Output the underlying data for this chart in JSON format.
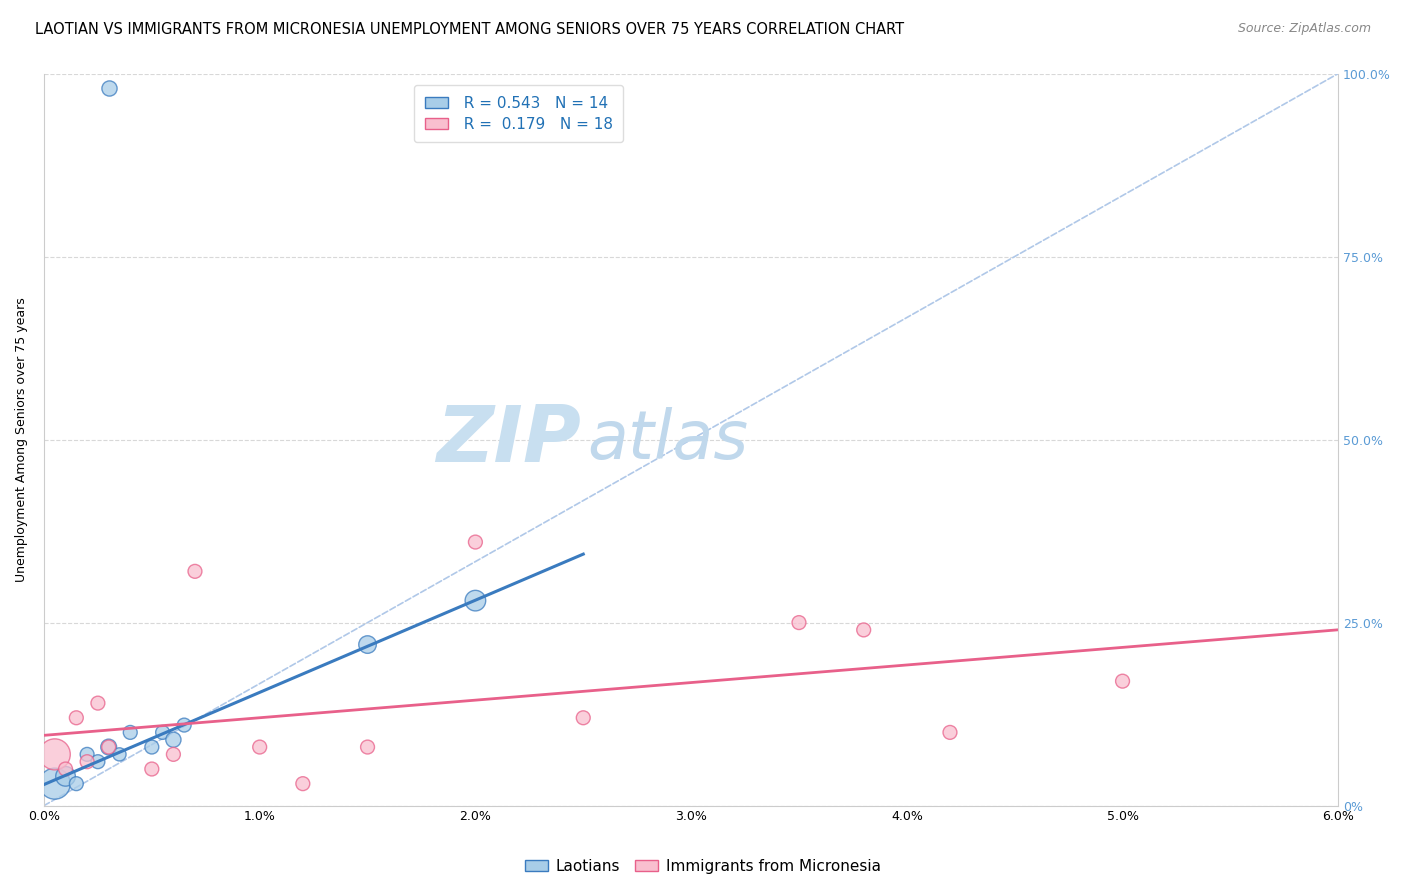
{
  "title": "LAOTIAN VS IMMIGRANTS FROM MICRONESIA UNEMPLOYMENT AMONG SENIORS OVER 75 YEARS CORRELATION CHART",
  "source": "Source: ZipAtlas.com",
  "ylabel": "Unemployment Among Seniors over 75 years",
  "xlabel_ticks": [
    "0.0%",
    "1.0%",
    "2.0%",
    "3.0%",
    "4.0%",
    "5.0%",
    "6.0%"
  ],
  "xlabel_vals": [
    0.0,
    1.0,
    2.0,
    3.0,
    4.0,
    5.0,
    6.0
  ],
  "ylabel_ticks_right": [
    "0%",
    "25.0%",
    "50.0%",
    "75.0%",
    "100.0%"
  ],
  "ylabel_vals_right": [
    0,
    25,
    50,
    75,
    100
  ],
  "xmin": 0.0,
  "xmax": 6.0,
  "ymin": 0,
  "ymax": 100,
  "blue_color": "#a8cde8",
  "pink_color": "#f9bfcf",
  "blue_line_color": "#3a7bbf",
  "pink_line_color": "#e8608a",
  "diagonal_color": "#b0c8e8",
  "watermark_zip_color": "#c8dff0",
  "watermark_atlas_color": "#c0d8ec",
  "legend_blue_r": "R = 0.543",
  "legend_blue_n": "N = 14",
  "legend_pink_r": "R =  0.179",
  "legend_pink_n": "N = 18",
  "label_blue": "Laotians",
  "label_pink": "Immigrants from Micronesia",
  "laotian_x": [
    0.05,
    0.1,
    0.15,
    0.2,
    0.25,
    0.3,
    0.35,
    0.4,
    0.5,
    0.55,
    0.6,
    0.65,
    1.5,
    2.0
  ],
  "laotian_y": [
    3,
    4,
    3,
    7,
    6,
    8,
    7,
    10,
    8,
    10,
    9,
    11,
    22,
    28
  ],
  "laotian_size": [
    500,
    200,
    100,
    100,
    100,
    130,
    90,
    100,
    100,
    100,
    120,
    100,
    160,
    220
  ],
  "micronesia_x": [
    0.05,
    0.1,
    0.15,
    0.2,
    0.25,
    0.3,
    0.5,
    0.6,
    0.7,
    1.5,
    2.0,
    2.5,
    3.5,
    3.8,
    4.2,
    5.0,
    1.0,
    1.2
  ],
  "micronesia_y": [
    7,
    5,
    12,
    6,
    14,
    8,
    5,
    7,
    32,
    8,
    36,
    12,
    25,
    24,
    10,
    17,
    8,
    3
  ],
  "micronesia_size": [
    500,
    100,
    100,
    100,
    100,
    100,
    100,
    100,
    100,
    100,
    100,
    100,
    100,
    100,
    100,
    100,
    100,
    100
  ],
  "blue_regr_x0": -0.05,
  "blue_regr_x1": 2.5,
  "pink_regr_x0": 0.0,
  "pink_regr_x1": 6.0,
  "title_fontsize": 10.5,
  "source_fontsize": 9,
  "axis_label_fontsize": 9,
  "tick_fontsize": 9,
  "legend_fontsize": 11,
  "watermark_fontsize": 52,
  "grid_color": "#d8d8d8"
}
